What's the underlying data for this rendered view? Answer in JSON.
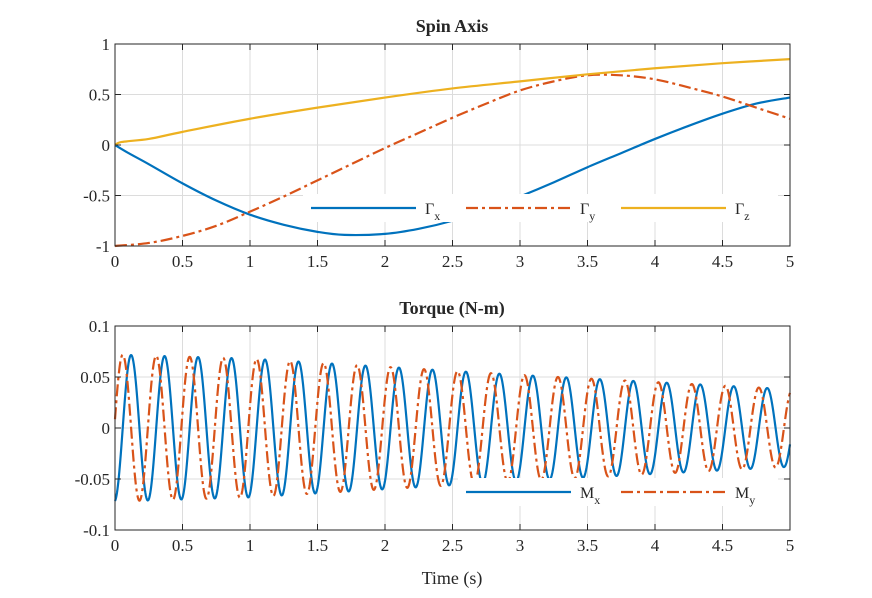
{
  "chart_data": [
    {
      "type": "line",
      "title": "Spin Axis",
      "xlabel": "",
      "ylabel": "",
      "xlim": [
        0,
        5
      ],
      "ylim": [
        -1,
        1
      ],
      "xticks": [
        "0",
        "0.5",
        "1",
        "1.5",
        "2",
        "2.5",
        "3",
        "3.5",
        "4",
        "4.5",
        "5"
      ],
      "yticks": [
        "-1",
        "-0.5",
        "0",
        "0.5",
        "1"
      ],
      "grid": true,
      "legend": {
        "placement": "bottom-right",
        "orientation": "horizontal"
      },
      "series": [
        {
          "name": "Γx",
          "name_main": "Γ",
          "name_sub": "x",
          "color": "#0072BD",
          "style": "solid",
          "x": [
            0,
            0.1,
            0.25,
            0.5,
            0.75,
            1,
            1.25,
            1.5,
            1.7,
            2,
            2.25,
            2.5,
            2.75,
            3,
            3.25,
            3.5,
            3.75,
            4,
            4.25,
            4.5,
            4.75,
            5
          ],
          "y": [
            0,
            -0.08,
            -0.19,
            -0.38,
            -0.55,
            -0.69,
            -0.79,
            -0.86,
            -0.89,
            -0.88,
            -0.83,
            -0.75,
            -0.64,
            -0.51,
            -0.37,
            -0.22,
            -0.08,
            0.06,
            0.19,
            0.31,
            0.41,
            0.47
          ]
        },
        {
          "name": "Γy",
          "name_main": "Γ",
          "name_sub": "y",
          "color": "#D95319",
          "style": "dashdot",
          "x": [
            0,
            0.25,
            0.5,
            0.75,
            1,
            1.25,
            1.5,
            1.75,
            2,
            2.25,
            2.5,
            2.75,
            3,
            3.25,
            3.5,
            3.75,
            4,
            4.25,
            4.5,
            4.75,
            5
          ],
          "y": [
            -1,
            -0.97,
            -0.9,
            -0.8,
            -0.66,
            -0.51,
            -0.35,
            -0.19,
            -0.03,
            0.12,
            0.27,
            0.41,
            0.54,
            0.63,
            0.69,
            0.69,
            0.65,
            0.57,
            0.48,
            0.37,
            0.26
          ]
        },
        {
          "name": "Γz",
          "name_main": "Γ",
          "name_sub": "z",
          "color": "#EDB120",
          "style": "solid",
          "x": [
            0,
            0.05,
            0.25,
            0.5,
            1,
            1.5,
            2,
            2.5,
            3,
            3.5,
            4,
            4.5,
            5
          ],
          "y": [
            0,
            0.03,
            0.06,
            0.13,
            0.26,
            0.37,
            0.47,
            0.56,
            0.63,
            0.7,
            0.76,
            0.81,
            0.85
          ]
        }
      ]
    },
    {
      "type": "line",
      "title": "Torque (N-m)",
      "xlabel": "Time (s)",
      "ylabel": "",
      "xlim": [
        0,
        5
      ],
      "ylim": [
        -0.1,
        0.1
      ],
      "xticks": [
        "0",
        "0.5",
        "1",
        "1.5",
        "2",
        "2.5",
        "3",
        "3.5",
        "4",
        "4.5",
        "5"
      ],
      "yticks": [
        "-0.1",
        "-0.05",
        "0",
        "0.05",
        "0.1"
      ],
      "grid": true,
      "legend": {
        "placement": "bottom-right",
        "orientation": "horizontal"
      },
      "series": [
        {
          "name": "Mx",
          "name_main": "M",
          "name_sub": "x",
          "color": "#0072BD",
          "style": "solid",
          "period": 0.248,
          "phase": -1.45,
          "amplitude_envelope": {
            "t": [
              0,
              0.5,
              1,
              2,
              3,
              4,
              5
            ],
            "a": [
              0.072,
              0.07,
              0.068,
              0.06,
              0.052,
              0.045,
              0.038
            ]
          }
        },
        {
          "name": "My",
          "name_main": "M",
          "name_sub": "y",
          "color": "#D95319",
          "style": "dashdot",
          "period": 0.248,
          "phase": 0.12,
          "amplitude_envelope": {
            "t": [
              0,
              0.5,
              1,
              2,
              3,
              4,
              5
            ],
            "a": [
              0.072,
              0.07,
              0.068,
              0.06,
              0.052,
              0.045,
              0.038
            ]
          }
        }
      ]
    }
  ]
}
